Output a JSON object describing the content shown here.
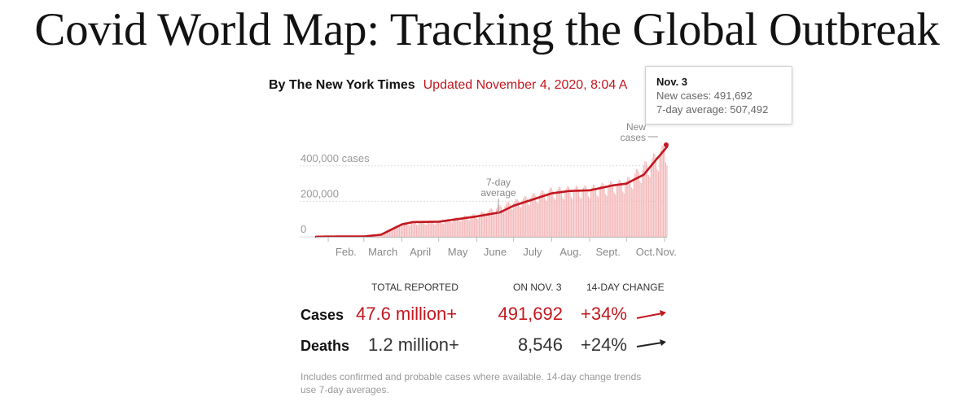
{
  "page": {
    "title": "Covid World Map: Tracking the Global Outbreak",
    "byline": "By The New York Times",
    "updated": "Updated November 4, 2020, 8:04 A"
  },
  "tooltip": {
    "date": "Nov. 3",
    "new_cases": "New cases: 491,692",
    "average": "7-day average: 507,492"
  },
  "chart_data": {
    "type": "bar",
    "title": "",
    "xlabel": "",
    "ylabel": "",
    "x_ticks": [
      "Feb.",
      "March",
      "April",
      "May",
      "June",
      "July",
      "Aug.",
      "Sept.",
      "Oct.",
      "Nov."
    ],
    "y_ticks": [
      "0",
      "200,000",
      "400,000 cases"
    ],
    "ylim": [
      0,
      500000
    ],
    "grid": true,
    "annotations": [
      "7-day average",
      "New cases"
    ],
    "series": [
      {
        "name": "New cases",
        "color": "#f4b6b8",
        "monthly_points": [
          {
            "date": "2020-01-22",
            "value": 600
          },
          {
            "date": "2020-02-01",
            "value": 2000
          },
          {
            "date": "2020-03-01",
            "value": 2500
          },
          {
            "date": "2020-03-15",
            "value": 15000
          },
          {
            "date": "2020-04-01",
            "value": 75000
          },
          {
            "date": "2020-05-01",
            "value": 85000
          },
          {
            "date": "2020-06-01",
            "value": 120000
          },
          {
            "date": "2020-07-01",
            "value": 190000
          },
          {
            "date": "2020-08-01",
            "value": 255000
          },
          {
            "date": "2020-09-01",
            "value": 265000
          },
          {
            "date": "2020-10-01",
            "value": 300000
          },
          {
            "date": "2020-11-03",
            "value": 491692
          }
        ]
      },
      {
        "name": "7-day average",
        "color": "#c3171f",
        "monthly_points": [
          {
            "date": "2020-01-22",
            "value": 500
          },
          {
            "date": "2020-02-01",
            "value": 1500
          },
          {
            "date": "2020-03-01",
            "value": 2000
          },
          {
            "date": "2020-03-15",
            "value": 12000
          },
          {
            "date": "2020-04-01",
            "value": 70000
          },
          {
            "date": "2020-04-10",
            "value": 83000
          },
          {
            "date": "2020-05-01",
            "value": 85000
          },
          {
            "date": "2020-06-01",
            "value": 115000
          },
          {
            "date": "2020-06-20",
            "value": 138000
          },
          {
            "date": "2020-07-01",
            "value": 175000
          },
          {
            "date": "2020-08-01",
            "value": 245000
          },
          {
            "date": "2020-08-15",
            "value": 258000
          },
          {
            "date": "2020-09-01",
            "value": 262000
          },
          {
            "date": "2020-09-20",
            "value": 290000
          },
          {
            "date": "2020-10-01",
            "value": 300000
          },
          {
            "date": "2020-10-15",
            "value": 350000
          },
          {
            "date": "2020-11-03",
            "value": 507492
          }
        ]
      }
    ]
  },
  "table": {
    "headers": [
      "TOTAL REPORTED",
      "ON NOV. 3",
      "14-DAY CHANGE"
    ],
    "rows": [
      {
        "label": "Cases",
        "total": "47.6 million+",
        "day": "491,692",
        "change": "+34%",
        "color": "#c3171f"
      },
      {
        "label": "Deaths",
        "total": "1.2 million+",
        "day": "8,546",
        "change": "+24%",
        "color": "#333333"
      }
    ]
  },
  "note": "Includes confirmed and probable cases where available. 14-day change trends use 7-day averages."
}
